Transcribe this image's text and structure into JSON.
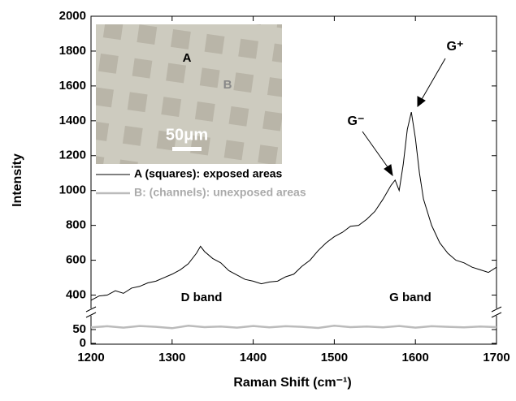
{
  "chart_data": [
    {
      "type": "line",
      "ylabel": "Intensity",
      "x": [
        1200,
        1210,
        1220,
        1230,
        1240,
        1250,
        1260,
        1270,
        1280,
        1290,
        1300,
        1310,
        1320,
        1330,
        1335,
        1340,
        1350,
        1360,
        1370,
        1380,
        1390,
        1400,
        1410,
        1420,
        1430,
        1440,
        1450,
        1460,
        1470,
        1480,
        1490,
        1500,
        1510,
        1520,
        1530,
        1540,
        1550,
        1560,
        1570,
        1575,
        1580,
        1585,
        1590,
        1595,
        1600,
        1605,
        1610,
        1620,
        1630,
        1640,
        1650,
        1660,
        1670,
        1680,
        1690,
        1700
      ],
      "series": [
        {
          "name": "A (squares): exposed areas",
          "color": "#000000",
          "values": [
            370,
            395,
            400,
            425,
            410,
            440,
            450,
            470,
            480,
            500,
            520,
            545,
            580,
            640,
            680,
            650,
            610,
            585,
            540,
            515,
            490,
            480,
            465,
            475,
            480,
            505,
            520,
            565,
            600,
            655,
            700,
            735,
            760,
            795,
            800,
            835,
            880,
            950,
            1030,
            1060,
            1000,
            1150,
            1350,
            1450,
            1300,
            1100,
            950,
            800,
            700,
            640,
            600,
            585,
            560,
            545,
            530,
            560
          ]
        }
      ],
      "xlim": [
        1200,
        1700
      ],
      "ylim": [
        300,
        2000
      ],
      "yticks": [
        400,
        600,
        800,
        1000,
        1200,
        1400,
        1600,
        1800,
        2000
      ],
      "annotations": [
        "D band",
        "G band",
        "G⁻",
        "G⁺"
      ],
      "inset": {
        "labels": [
          "A",
          "B"
        ],
        "scale_bar": "50μm"
      }
    },
    {
      "type": "line",
      "xlabel": "Raman Shift (cm⁻¹)",
      "x": [
        1200,
        1220,
        1240,
        1260,
        1280,
        1300,
        1320,
        1340,
        1360,
        1380,
        1400,
        1420,
        1440,
        1460,
        1480,
        1500,
        1520,
        1540,
        1560,
        1580,
        1600,
        1620,
        1640,
        1660,
        1680,
        1700
      ],
      "series": [
        {
          "name": "B: (channels): unexposed areas",
          "color": "#bbbbbb",
          "values": [
            58,
            62,
            57,
            63,
            60,
            55,
            64,
            59,
            61,
            57,
            63,
            58,
            62,
            60,
            56,
            64,
            59,
            61,
            58,
            63,
            57,
            62,
            60,
            58,
            61,
            59
          ]
        }
      ],
      "xlim": [
        1200,
        1700
      ],
      "ylim": [
        0,
        100
      ],
      "xticks": [
        1200,
        1300,
        1400,
        1500,
        1600,
        1700
      ],
      "yticks": [
        0,
        50
      ]
    }
  ]
}
